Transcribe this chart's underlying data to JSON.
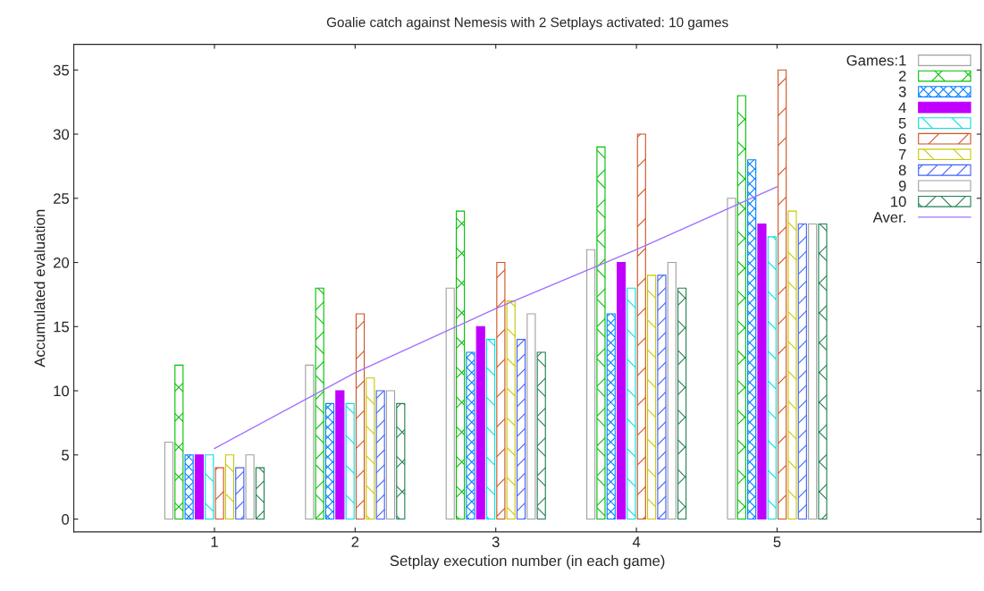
{
  "chart_data": {
    "type": "bar",
    "title": "Goalie catch against Nemesis with 2 Setplays activated: 10 games",
    "xlabel": "Setplay execution number (in each game)",
    "ylabel": "Accumulated evaluation",
    "categories": [
      "1",
      "2",
      "3",
      "4",
      "5"
    ],
    "series": [
      {
        "name": "Games:1",
        "color": "#a0a0a0",
        "values": [
          6,
          12,
          18,
          21,
          25
        ]
      },
      {
        "name": "2",
        "color": "#00c000",
        "values": [
          12,
          18,
          24,
          29,
          33
        ]
      },
      {
        "name": "3",
        "color": "#0080ff",
        "values": [
          5,
          9,
          13,
          16,
          28
        ]
      },
      {
        "name": "4",
        "color": "#c000ff",
        "values": [
          5,
          10,
          15,
          20,
          23
        ]
      },
      {
        "name": "5",
        "color": "#00e0e0",
        "values": [
          5,
          9,
          14,
          18,
          22
        ]
      },
      {
        "name": "6",
        "color": "#d05020",
        "values": [
          4,
          16,
          20,
          30,
          35
        ]
      },
      {
        "name": "7",
        "color": "#c8c800",
        "values": [
          5,
          11,
          17,
          19,
          24
        ]
      },
      {
        "name": "8",
        "color": "#4060ff",
        "values": [
          4,
          10,
          14,
          19,
          23
        ]
      },
      {
        "name": "9",
        "color": "#a0a0a0",
        "values": [
          5,
          10,
          16,
          20,
          23
        ]
      },
      {
        "name": "10",
        "color": "#208050",
        "values": [
          4,
          9,
          13,
          18,
          23
        ]
      },
      {
        "name": "Aver.",
        "type": "line",
        "color": "#a070ff",
        "values": [
          5.5,
          11.4,
          16.4,
          21,
          25.9
        ]
      }
    ],
    "ylim": [
      -1,
      37
    ],
    "yticks": [
      0,
      5,
      10,
      15,
      20,
      25,
      30,
      35
    ],
    "grid": false,
    "legend": "top right"
  }
}
